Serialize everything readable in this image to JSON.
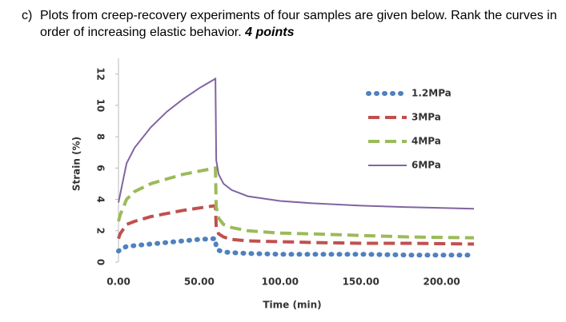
{
  "question": {
    "label": "c)",
    "text": "Plots from creep-recovery experiments of four samples are given below. Rank the curves in order of increasing elastic behavior.",
    "points": "4 points"
  },
  "chart_data": {
    "type": "line",
    "xlabel": "Time (min)",
    "ylabel": "Strain (%)",
    "x": [
      0,
      1,
      5,
      10,
      20,
      30,
      40,
      50,
      60,
      60.5,
      62,
      65,
      70,
      80,
      100,
      120,
      150,
      180,
      220
    ],
    "series": [
      {
        "name": "1.2MPa",
        "color": "#4f81bd",
        "style": "dotted",
        "values": [
          0.7,
          0.8,
          1.0,
          1.05,
          1.15,
          1.25,
          1.35,
          1.45,
          1.5,
          0.9,
          0.75,
          0.65,
          0.6,
          0.55,
          0.5,
          0.5,
          0.5,
          0.45,
          0.45
        ]
      },
      {
        "name": "3MPa",
        "color": "#c0504d",
        "style": "dashed",
        "values": [
          1.5,
          1.8,
          2.4,
          2.6,
          2.9,
          3.1,
          3.3,
          3.45,
          3.6,
          2.2,
          1.8,
          1.6,
          1.45,
          1.35,
          1.3,
          1.25,
          1.2,
          1.2,
          1.15
        ]
      },
      {
        "name": "4MPa",
        "color": "#9bbb59",
        "style": "dashed",
        "values": [
          2.6,
          3.0,
          4.0,
          4.5,
          5.0,
          5.3,
          5.6,
          5.8,
          6.0,
          3.5,
          2.8,
          2.4,
          2.2,
          2.0,
          1.85,
          1.8,
          1.7,
          1.6,
          1.55
        ]
      },
      {
        "name": "6MPa",
        "color": "#8064a2",
        "style": "solid",
        "values": [
          3.8,
          4.3,
          6.3,
          7.3,
          8.6,
          9.6,
          10.4,
          11.1,
          11.7,
          6.5,
          5.6,
          5.0,
          4.6,
          4.2,
          3.9,
          3.75,
          3.6,
          3.5,
          3.4
        ]
      }
    ],
    "xlim": [
      0,
      220
    ],
    "ylim": [
      0,
      13
    ],
    "xticks": [
      {
        "value": 0,
        "label": "0.00"
      },
      {
        "value": 50,
        "label": "50.00"
      },
      {
        "value": 100,
        "label": "100.00"
      },
      {
        "value": 150,
        "label": "150.00"
      },
      {
        "value": 200,
        "label": "200.00"
      }
    ],
    "yticks": [
      0,
      2,
      4,
      6,
      8,
      10,
      12
    ],
    "legend": "upper right"
  }
}
